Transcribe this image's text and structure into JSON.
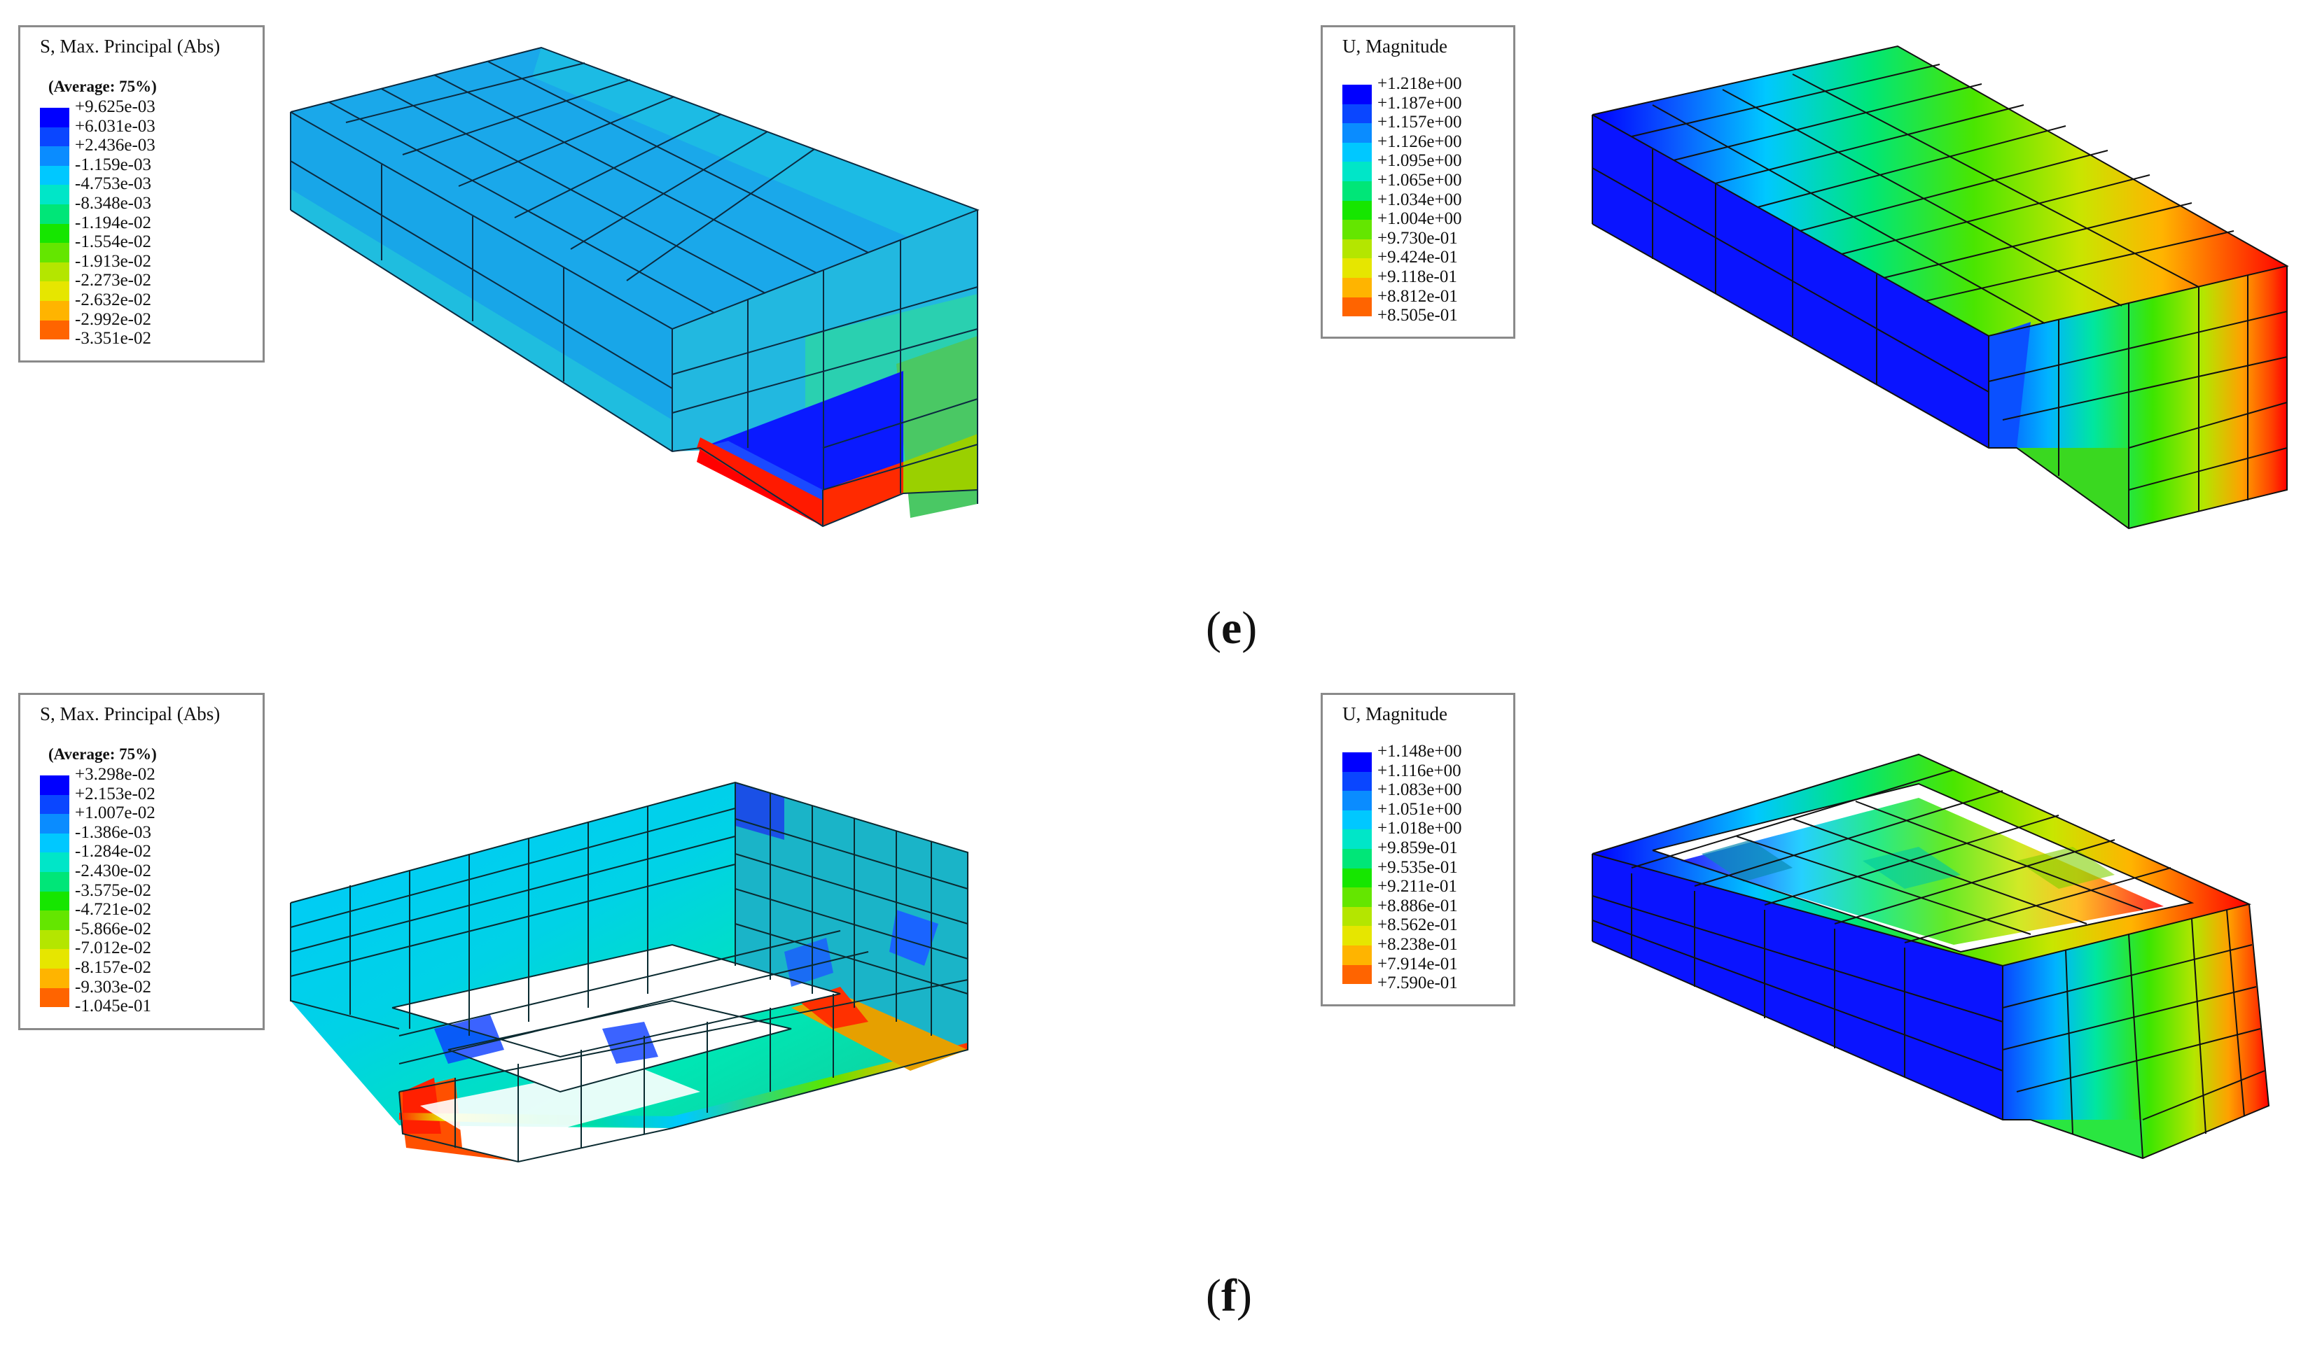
{
  "panels": {
    "e": {
      "label": "e",
      "stress_legend": {
        "title": "S, Max. Principal (Abs)",
        "subtitle": "(Average: 75%)",
        "values": [
          "+9.625e-03",
          "+6.031e-03",
          "+2.436e-03",
          "-1.159e-03",
          "-4.753e-03",
          "-8.348e-03",
          "-1.194e-02",
          "-1.554e-02",
          "-1.913e-02",
          "-2.273e-02",
          "-2.632e-02",
          "-2.992e-02",
          "-3.351e-02"
        ]
      },
      "disp_legend": {
        "title": "U, Magnitude",
        "values": [
          "+1.218e+00",
          "+1.187e+00",
          "+1.157e+00",
          "+1.126e+00",
          "+1.095e+00",
          "+1.065e+00",
          "+1.034e+00",
          "+1.004e+00",
          "+9.730e-01",
          "+9.424e-01",
          "+9.118e-01",
          "+8.812e-01",
          "+8.505e-01"
        ]
      }
    },
    "f": {
      "label": "f",
      "stress_legend": {
        "title": "S, Max. Principal (Abs)",
        "subtitle": "(Average: 75%)",
        "values": [
          "+3.298e-02",
          "+2.153e-02",
          "+1.007e-02",
          "-1.386e-03",
          "-1.284e-02",
          "-2.430e-02",
          "-3.575e-02",
          "-4.721e-02",
          "-5.866e-02",
          "-7.012e-02",
          "-8.157e-02",
          "-9.303e-02",
          "-1.045e-01"
        ]
      },
      "disp_legend": {
        "title": "U, Magnitude",
        "values": [
          "+1.148e+00",
          "+1.116e+00",
          "+1.083e+00",
          "+1.051e+00",
          "+1.018e+00",
          "+9.859e-01",
          "+9.535e-01",
          "+9.211e-01",
          "+8.886e-01",
          "+8.562e-01",
          "+8.238e-01",
          "+7.914e-01",
          "+7.590e-01"
        ]
      }
    }
  },
  "contour_colors": [
    "#0000ff",
    "#0a46ff",
    "#0a8cff",
    "#00c8ff",
    "#00e6c8",
    "#00e678",
    "#16e600",
    "#64e600",
    "#b4e600",
    "#e6e600",
    "#ffb400",
    "#ff6400",
    "#ff0000"
  ]
}
